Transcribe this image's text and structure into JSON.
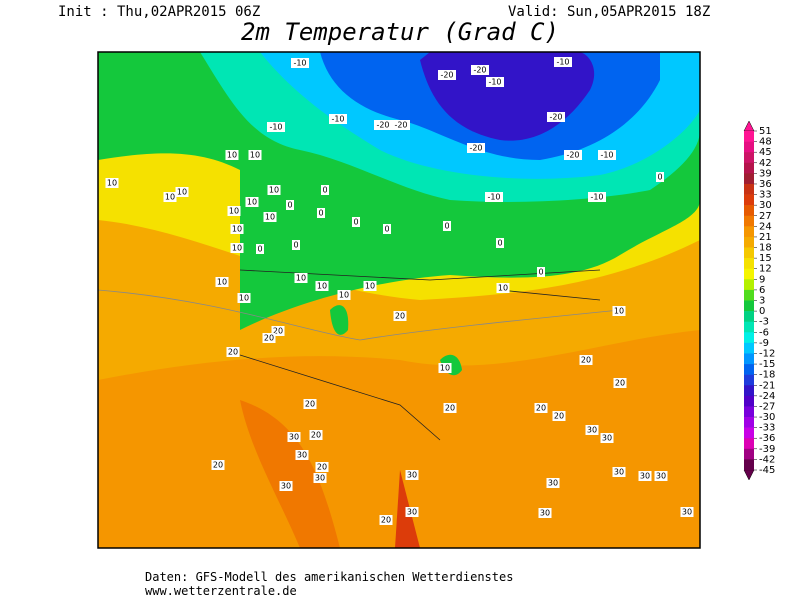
{
  "header": {
    "init": "Init : Thu,02APR2015 06Z",
    "valid": "Valid: Sun,05APR2015 18Z",
    "title": "2m Temperatur (Grad C)"
  },
  "colorbar": {
    "ticks": [
      51,
      48,
      45,
      42,
      39,
      36,
      33,
      30,
      27,
      24,
      21,
      18,
      15,
      12,
      9,
      6,
      3,
      0,
      -3,
      -6,
      -9,
      -12,
      -15,
      -18,
      -21,
      -24,
      -27,
      -30,
      -33,
      -36,
      -39,
      -42,
      -45
    ],
    "colors": [
      "#ff1493",
      "#e60f82",
      "#cc1466",
      "#b4144b",
      "#a01e32",
      "#c83214",
      "#dc3c0a",
      "#e65a00",
      "#f07800",
      "#f59600",
      "#f5aa00",
      "#f5c800",
      "#f5e100",
      "#f5f500",
      "#b4f000",
      "#50dc1e",
      "#14c83c",
      "#00d282",
      "#00e6b4",
      "#00f0e6",
      "#00c8ff",
      "#0096ff",
      "#0064f0",
      "#1e3cdc",
      "#3214c8",
      "#5000c8",
      "#7800dc",
      "#a000e6",
      "#c800e6",
      "#dc00b4",
      "#a00082",
      "#64004b"
    ]
  },
  "map": {
    "contour_labels": [
      "-10",
      "-20",
      "-20",
      "-10",
      "-10",
      "-10",
      "-20",
      "-20",
      "-10",
      "-20",
      "-20",
      "-20",
      "-10",
      "-10",
      "-10",
      "10",
      "10",
      "10",
      "10",
      "10",
      "10",
      "10",
      "10",
      "10",
      "10",
      "0",
      "0",
      "0",
      "0",
      "0",
      "0",
      "0",
      "0",
      "0",
      "0",
      "0",
      "10",
      "10",
      "10",
      "10",
      "10",
      "10",
      "10",
      "10",
      "10",
      "10",
      "20",
      "20",
      "20",
      "20",
      "20",
      "20",
      "20",
      "20",
      "20",
      "20",
      "20",
      "20",
      "20",
      "20",
      "30",
      "30",
      "30",
      "30",
      "30",
      "30",
      "30",
      "30",
      "30",
      "30",
      "30",
      "30",
      "30",
      "30"
    ]
  },
  "footer": {
    "line1": "Daten: GFS-Modell des amerikanischen Wetterdienstes",
    "line2": "www.wetterzentrale.de"
  }
}
